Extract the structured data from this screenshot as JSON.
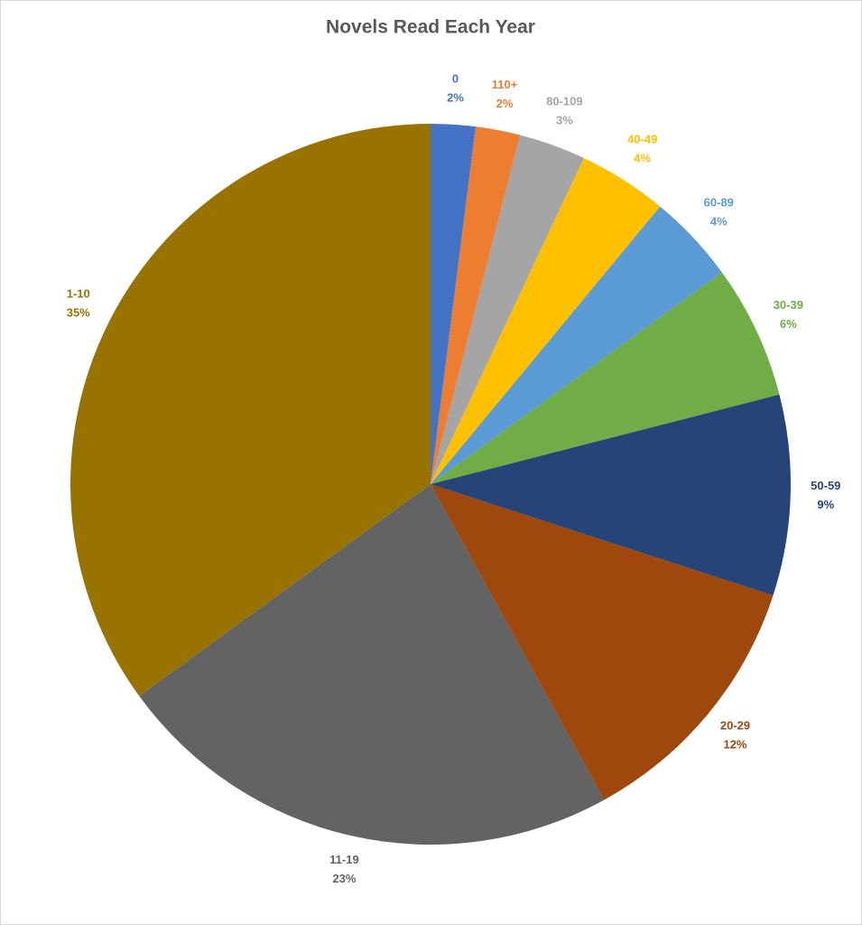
{
  "chart_data": {
    "type": "pie",
    "title": "Novels Read Each Year",
    "categories": [
      "0",
      "110+",
      "80-109",
      "40-49",
      "60-89",
      "30-39",
      "50-59",
      "20-29",
      "11-19",
      "1-10"
    ],
    "values": [
      2,
      2,
      3,
      4,
      4,
      6,
      9,
      12,
      23,
      35
    ],
    "value_labels": [
      "2%",
      "2%",
      "3%",
      "4%",
      "4%",
      "6%",
      "9%",
      "12%",
      "23%",
      "35%"
    ],
    "colors": [
      "#4472c4",
      "#ed7d31",
      "#a5a5a5",
      "#ffc000",
      "#5b9bd5",
      "#70ad47",
      "#264478",
      "#9e480e",
      "#636363",
      "#997300"
    ]
  }
}
